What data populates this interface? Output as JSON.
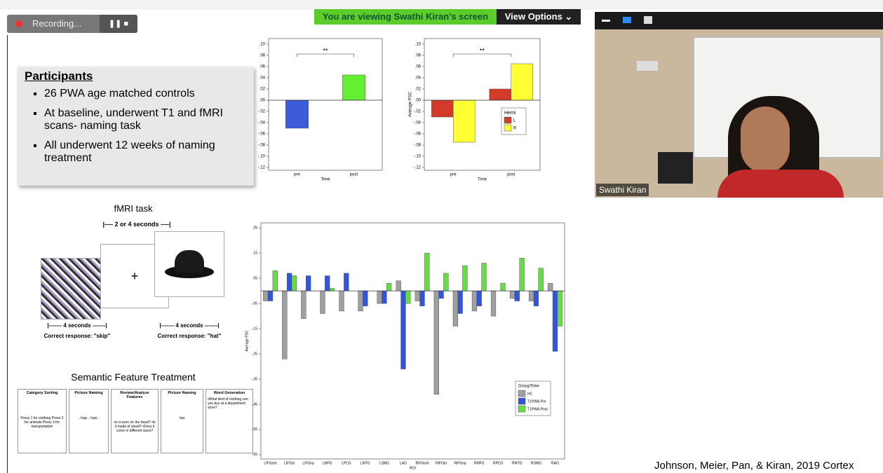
{
  "meeting": {
    "recording": "Recording...",
    "banner": "You are viewing Swathi Kiran's screen",
    "view_options": "View Options",
    "participant_name": "Swathi Kiran"
  },
  "slide": {
    "participants": {
      "heading": "Participants",
      "bullets": [
        "26 PWA  age matched controls",
        "At baseline, underwent T1 and fMRI scans- naming task",
        "All underwent 12 weeks of naming treatment"
      ]
    },
    "fmri_task": {
      "title": "fMRI task",
      "interval": "|---- 2 or 4 seconds ----|",
      "fixation": "+",
      "duration_left": "|------- 4 seconds -------|",
      "duration_right": "|------- 4 seconds -------|",
      "response_left": "Correct response: \"skip\"",
      "response_right": "Correct response: \"hat\""
    },
    "treatment": {
      "title": "Semantic Feature Treatment",
      "panels": [
        {
          "title": "Category Sorting",
          "text": "Press 1 for clothing Press 2 for animals Press 3 for transportation"
        },
        {
          "title": "Picture Naming",
          "text": "...hap... had..."
        },
        {
          "title": "Review/Analyze Features",
          "text": "•Is it worn on the head? •Is it made of wood? •Does it come in different sizes?"
        },
        {
          "title": "Picture Naming",
          "text": "hat"
        },
        {
          "title": "Word Generation",
          "text": "•What kind of clothing can you buy at a department store?"
        }
      ]
    },
    "citation": "Johnson, Meier, Pan, & Kiran, 2019 Cortex"
  },
  "chart_data": [
    {
      "type": "bar",
      "categories": [
        "pre",
        "post"
      ],
      "values": [
        -0.05,
        0.045
      ],
      "colors": [
        "#3b5bd9",
        "#66ee33"
      ],
      "x_label": "Time",
      "annotation": "**",
      "ylim": [
        -0.125,
        0.11
      ],
      "yticks": [
        {
          "value": 0.1,
          "label": ".10"
        },
        {
          "value": 0.08,
          "label": ".08"
        },
        {
          "value": 0.06,
          "label": ".06"
        },
        {
          "value": 0.04,
          "label": ".04"
        },
        {
          "value": 0.02,
          "label": ".02"
        },
        {
          "value": 0,
          "label": ".00"
        },
        {
          "value": -0.02,
          "label": "-.02"
        },
        {
          "value": -0.04,
          "label": "-.04"
        },
        {
          "value": -0.06,
          "label": "-.06"
        },
        {
          "value": -0.08,
          "label": "-.08"
        },
        {
          "value": -0.1,
          "label": "-.10"
        },
        {
          "value": -0.12,
          "label": "-.12"
        }
      ]
    },
    {
      "type": "bar",
      "categories": [
        "pre",
        "post"
      ],
      "series": [
        {
          "name": "L",
          "color": "#d43a2a",
          "values": [
            -0.03,
            0.02
          ]
        },
        {
          "name": "R",
          "color": "#ffff33",
          "values": [
            -0.075,
            0.065
          ]
        }
      ],
      "legend_title": "Hemi",
      "x_label": "Time",
      "y_label": "Average PSC",
      "annotation": "**",
      "ylim": [
        -0.125,
        0.11
      ],
      "yticks": [
        {
          "value": 0.1,
          "label": ".10"
        },
        {
          "value": 0.08,
          "label": ".08"
        },
        {
          "value": 0.06,
          "label": ".06"
        },
        {
          "value": 0.04,
          "label": ".04"
        },
        {
          "value": 0.02,
          "label": ".02"
        },
        {
          "value": 0,
          "label": ".00"
        },
        {
          "value": -0.02,
          "label": "-.02"
        },
        {
          "value": -0.04,
          "label": "-.04"
        },
        {
          "value": -0.06,
          "label": "-.06"
        },
        {
          "value": -0.08,
          "label": "-.08"
        },
        {
          "value": -0.1,
          "label": "-.10"
        },
        {
          "value": -0.12,
          "label": "-.12"
        }
      ]
    },
    {
      "type": "bar",
      "categories": [
        "LIFGorb",
        "LIFGtri",
        "LIFGop",
        "LMFG",
        "LPCG",
        "LMTG",
        "LSMG",
        "LAG",
        "RIFGorb",
        "RIFGtri",
        "RIFGop",
        "RMFG",
        "RPCG",
        "RMTG",
        "RSMG",
        "RAG"
      ],
      "series": [
        {
          "name": "HC",
          "color": "#a0a0a0",
          "values": [
            -0.04,
            -0.27,
            -0.11,
            -0.09,
            -0.08,
            -0.08,
            -0.05,
            0.04,
            -0.04,
            -0.41,
            -0.14,
            -0.08,
            -0.1,
            -0.03,
            -0.04,
            0.03
          ]
        },
        {
          "name": "T1PWA-Pre",
          "color": "#3355dd",
          "values": [
            -0.04,
            0.07,
            0.06,
            0.06,
            0.07,
            -0.06,
            -0.05,
            -0.31,
            -0.06,
            -0.03,
            -0.09,
            -0.06,
            0,
            -0.04,
            -0.06,
            -0.24
          ]
        },
        {
          "name": "T1PWA-Post",
          "color": "#66dd44",
          "values": [
            0.08,
            0.06,
            0,
            0.01,
            0,
            0,
            0.03,
            -0.05,
            0.15,
            0.07,
            0.1,
            0.11,
            0.03,
            0.13,
            0.09,
            -0.14
          ]
        }
      ],
      "legend_title": "GroupTime",
      "x_label": "ROI",
      "y_label": "Average PSC",
      "ylim": [
        -0.667,
        0.27
      ],
      "yticks": [
        {
          "value": 0.25,
          "label": ".25"
        },
        {
          "value": 0.15,
          "label": ".15"
        },
        {
          "value": 0.05,
          "label": ".05"
        },
        {
          "value": -0.05,
          "label": "-.05"
        },
        {
          "value": -0.15,
          "label": "-.15"
        },
        {
          "value": -0.25,
          "label": "-.25"
        },
        {
          "value": -0.35,
          "label": "-.35"
        },
        {
          "value": -0.45,
          "label": "-.45"
        },
        {
          "value": -0.55,
          "label": "-.55"
        },
        {
          "value": -0.65,
          "label": "-.65"
        }
      ]
    }
  ]
}
